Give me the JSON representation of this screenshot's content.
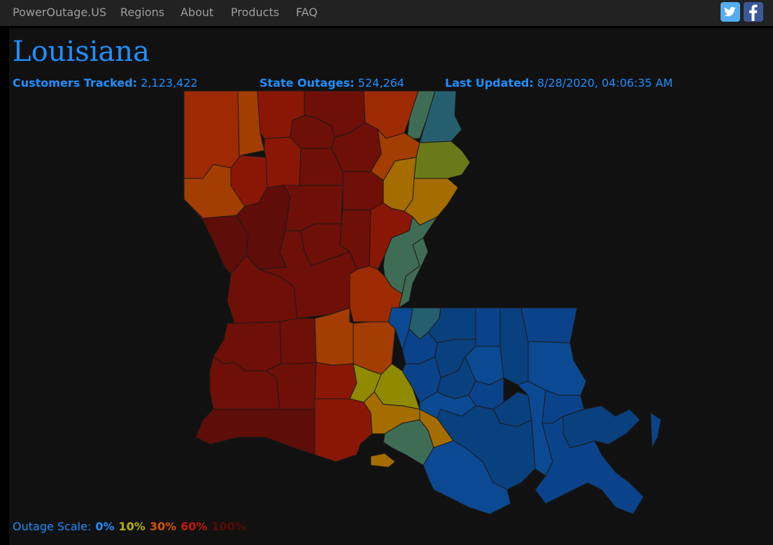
{
  "nav": {
    "brand": "PowerOutage.US",
    "links": [
      "Regions",
      "About",
      "Products",
      "FAQ"
    ],
    "social": {
      "twitter_icon": "twitter-icon",
      "facebook_icon": "facebook-icon"
    }
  },
  "page": {
    "title": "Louisiana",
    "customers_label": "Customers Tracked:",
    "customers_value": "2,123,422",
    "outages_label": "State Outages:",
    "outages_value": "524,264",
    "updated_label": "Last Updated:",
    "updated_value": "8/28/2020, 04:06:35 AM"
  },
  "scale": {
    "label": "Outage Scale:",
    "steps": [
      {
        "text": "0%",
        "color": "#1f8fff"
      },
      {
        "text": "10%",
        "color": "#b5b500"
      },
      {
        "text": "30%",
        "color": "#d35400"
      },
      {
        "text": "60%",
        "color": "#c0180c"
      },
      {
        "text": "100%",
        "color": "#5a0a06"
      }
    ]
  },
  "colors": {
    "deep_red": "#5e0d08",
    "dark_red": "#6e1008",
    "red": "#8a1706",
    "orange_red": "#9e2a04",
    "orange": "#a33d02",
    "amber": "#a56c00",
    "olive": "#8f8a00",
    "olive_green": "#6b7a18",
    "teal_green": "#3f6c55",
    "teal": "#255f6e",
    "blue": "#0a438a",
    "blue2": "#0b4a92",
    "blue3": "#09417f"
  }
}
